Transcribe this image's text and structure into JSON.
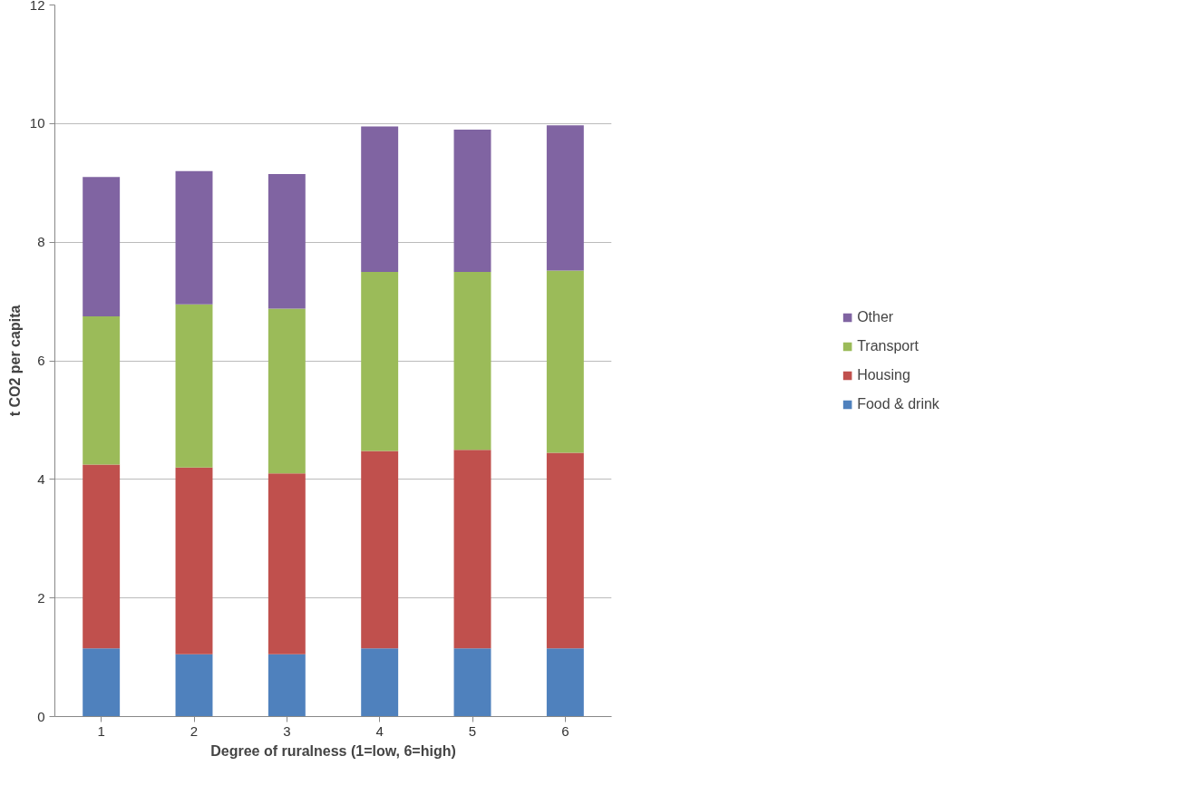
{
  "chart_data": {
    "type": "bar",
    "stacked": true,
    "xlabel": "Degree of ruralness (1=low, 6=high)",
    "ylabel": "t CO2 per capita",
    "categories": [
      "1",
      "2",
      "3",
      "4",
      "5",
      "6"
    ],
    "series": [
      {
        "name": "Food & drink",
        "color": "#4f81bd",
        "values": [
          1.15,
          1.05,
          1.05,
          1.15,
          1.15,
          1.15
        ]
      },
      {
        "name": "Housing",
        "color": "#c0504d",
        "values": [
          3.1,
          3.15,
          3.05,
          3.33,
          3.35,
          3.3
        ]
      },
      {
        "name": "Transport",
        "color": "#9bbb59",
        "values": [
          2.5,
          2.75,
          2.78,
          3.02,
          3.0,
          3.07
        ]
      },
      {
        "name": "Other",
        "color": "#8064a2",
        "values": [
          2.35,
          2.25,
          2.27,
          2.45,
          2.4,
          2.45
        ]
      }
    ],
    "ylim": [
      0,
      12
    ],
    "yticks": [
      0,
      2,
      4,
      6,
      8,
      10,
      12
    ],
    "grid": "y",
    "legend": "right"
  }
}
